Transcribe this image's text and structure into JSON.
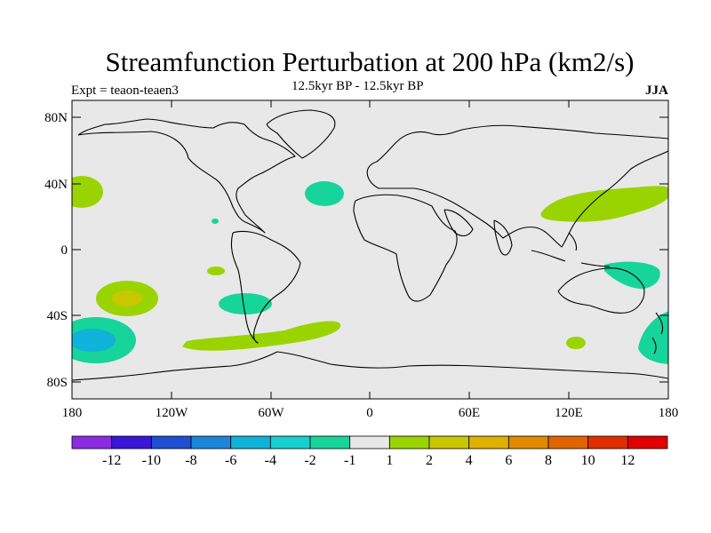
{
  "title": "Streamfunction Perturbation at 200 hPa (km2/s)",
  "experiment": "Expt = teaon-teaen3",
  "subtitle": "12.5kyr BP - 12.5kyr BP",
  "season": "JJA",
  "map": {
    "lat_ticks": [
      "80N",
      "40N",
      "0",
      "40S",
      "80S"
    ],
    "lon_ticks": [
      "180",
      "120W",
      "60W",
      "0",
      "60E",
      "120E",
      "180"
    ],
    "background_color": "#e8e8e8"
  },
  "colorbar": {
    "colors": [
      "#8a2be2",
      "#3a16d8",
      "#1f4fd2",
      "#1e86da",
      "#0fb2d8",
      "#17cfcc",
      "#17d49a",
      "#e8e8e8",
      "#9ad400",
      "#c8c800",
      "#deb000",
      "#e08a00",
      "#e06400",
      "#e02e00",
      "#e00000"
    ],
    "labels": [
      "-12",
      "-10",
      "-8",
      "-6",
      "-4",
      "-2",
      "-1",
      "1",
      "2",
      "4",
      "6",
      "8",
      "10",
      "12"
    ]
  },
  "legend_colors": {
    "pos1": "#9ad400",
    "pos2": "#c8c800",
    "neg1": "#17d49a",
    "neg4": "#0fb2d8"
  }
}
